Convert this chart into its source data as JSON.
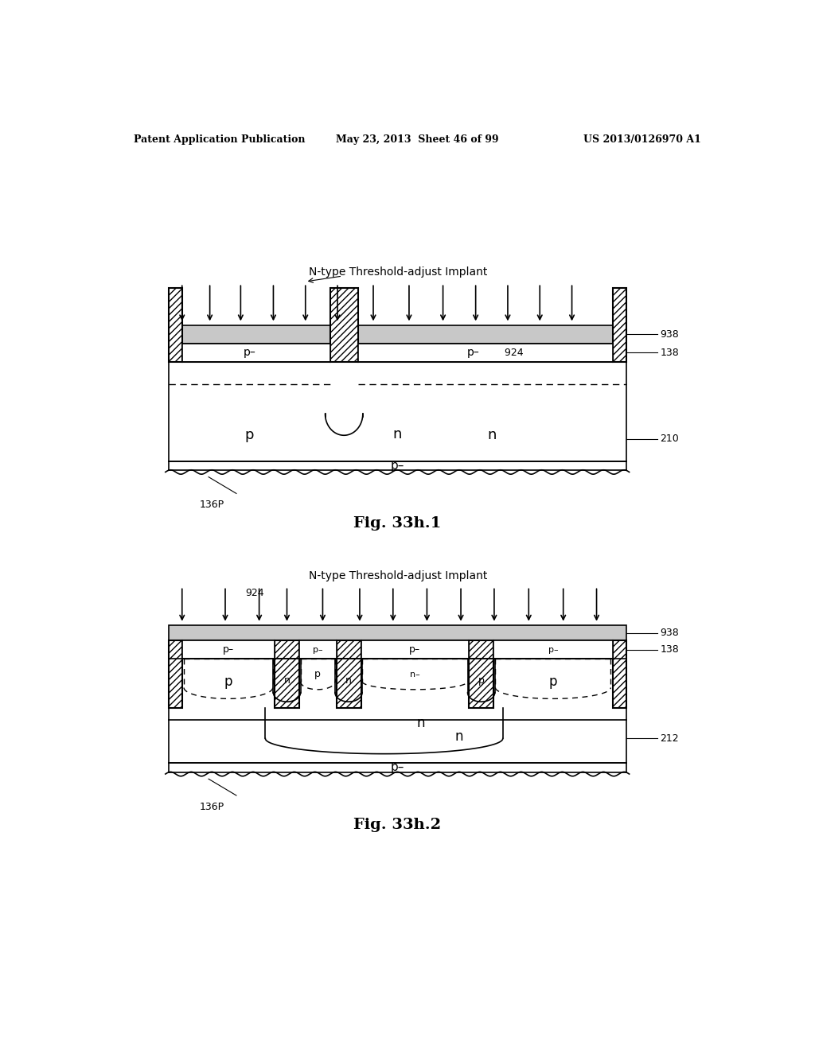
{
  "header_left": "Patent Application Publication",
  "header_mid": "May 23, 2013  Sheet 46 of 99",
  "header_right": "US 2013/0126970 A1",
  "fig1_title": "Fig. 33h.1",
  "fig2_title": "Fig. 33h.2",
  "implant_label": "N-type Threshold-adjust Implant",
  "background": "#ffffff"
}
